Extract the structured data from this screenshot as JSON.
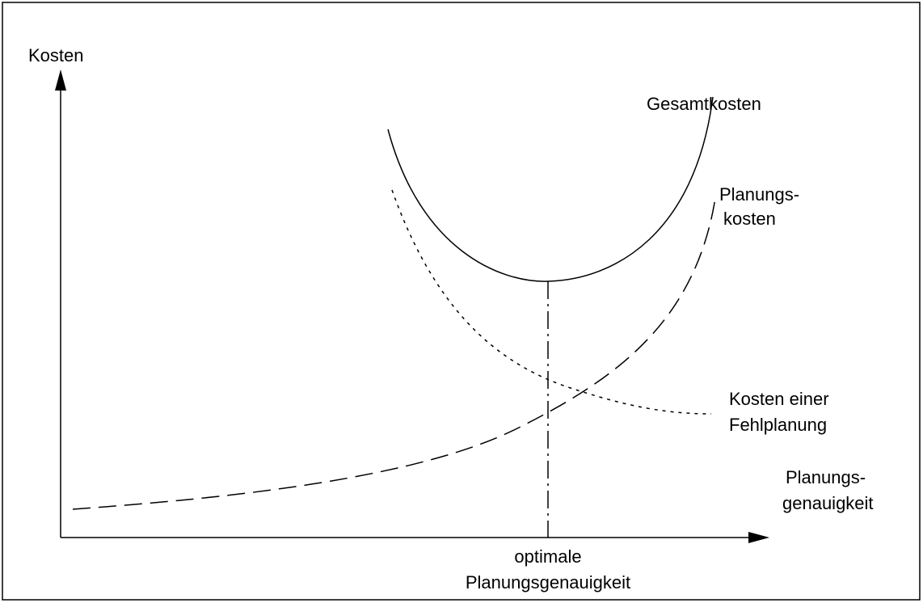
{
  "y_axis_label": "Kosten",
  "x_axis_label": {
    "lines": [
      "Planungs-",
      "genauigkeit"
    ]
  },
  "curves": [
    {
      "label": {
        "lines": [
          "Gesamtkosten"
        ]
      }
    },
    {
      "label": {
        "lines": [
          "Planungs-",
          "kosten"
        ]
      }
    },
    {
      "label": {
        "lines": [
          "Kosten einer",
          "Fehlplanung"
        ]
      }
    }
  ],
  "marker_label": {
    "lines": [
      "optimale",
      "Planungsgenauigkeit"
    ]
  }
}
